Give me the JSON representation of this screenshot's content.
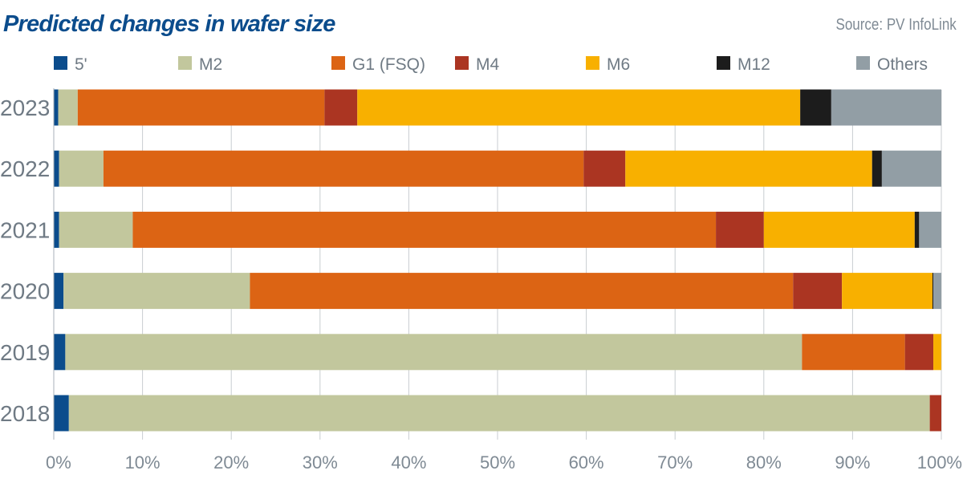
{
  "chart_data": {
    "type": "bar",
    "orientation": "horizontal",
    "stacked": true,
    "title": "Predicted changes in wafer size",
    "source": "Source: PV InfoLink",
    "categories": [
      "2023",
      "2022",
      "2021",
      "2020",
      "2019",
      "2018"
    ],
    "series": [
      {
        "name": "5'",
        "color": "#0b4c8c",
        "values": [
          0.5,
          0.6,
          0.6,
          1.1,
          1.3,
          1.7
        ]
      },
      {
        "name": "M2",
        "color": "#c2c79d",
        "values": [
          2.2,
          5.0,
          8.3,
          21.0,
          83.0,
          97.0
        ]
      },
      {
        "name": "G1 (FSQ)",
        "color": "#dc6414",
        "values": [
          27.8,
          54.1,
          65.7,
          61.2,
          11.6,
          0
        ]
      },
      {
        "name": "M4",
        "color": "#ab3522",
        "values": [
          3.7,
          4.7,
          5.4,
          5.5,
          3.2,
          1.3
        ]
      },
      {
        "name": "M6",
        "color": "#f8b000",
        "values": [
          49.9,
          27.8,
          17.0,
          10.2,
          0.9,
          0
        ]
      },
      {
        "name": "M12",
        "color": "#1c1c1c",
        "values": [
          3.5,
          1.1,
          0.5,
          0.1,
          0,
          0
        ]
      },
      {
        "name": "Others",
        "color": "#929ea5",
        "values": [
          12.4,
          6.7,
          2.5,
          0.9,
          0,
          0
        ]
      }
    ],
    "xlim": [
      0,
      100
    ],
    "xticks": [
      "0%",
      "10%",
      "20%",
      "30%",
      "40%",
      "50%",
      "60%",
      "70%",
      "80%",
      "90%",
      "100%"
    ],
    "grid": true,
    "legend": "top"
  }
}
